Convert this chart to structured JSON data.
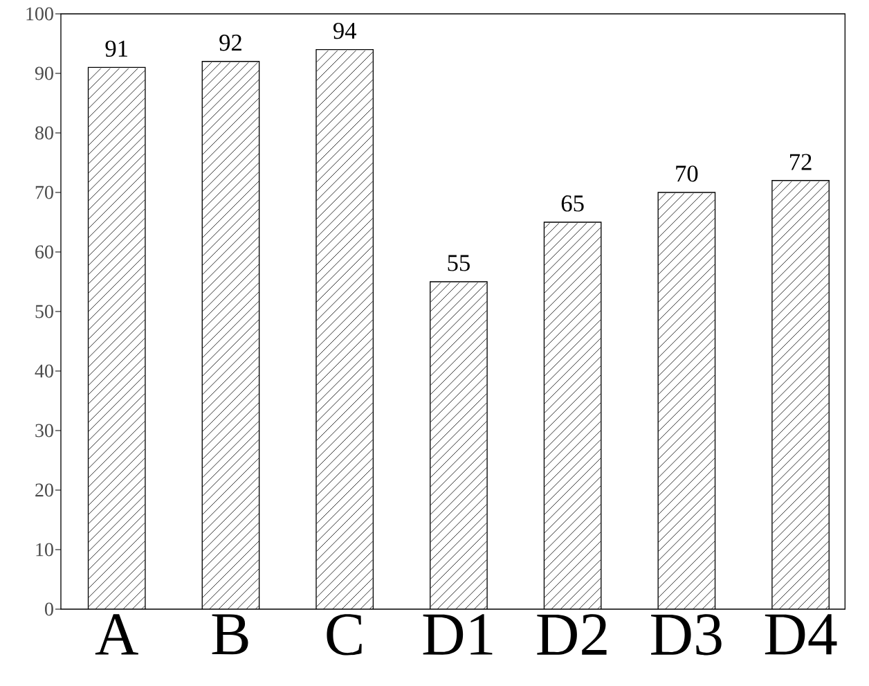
{
  "chart_data": {
    "type": "bar",
    "categories": [
      "A",
      "B",
      "C",
      "D1",
      "D2",
      "D3",
      "D4"
    ],
    "values": [
      91,
      92,
      94,
      55,
      65,
      70,
      72
    ],
    "color": "#ffffff",
    "ylim": [
      0,
      100
    ],
    "yticks": [
      0,
      10,
      20,
      30,
      40,
      50,
      60,
      70,
      80,
      90,
      100
    ],
    "value_labels": [
      "91",
      "92",
      "94",
      "55",
      "65",
      "70",
      "72"
    ]
  }
}
